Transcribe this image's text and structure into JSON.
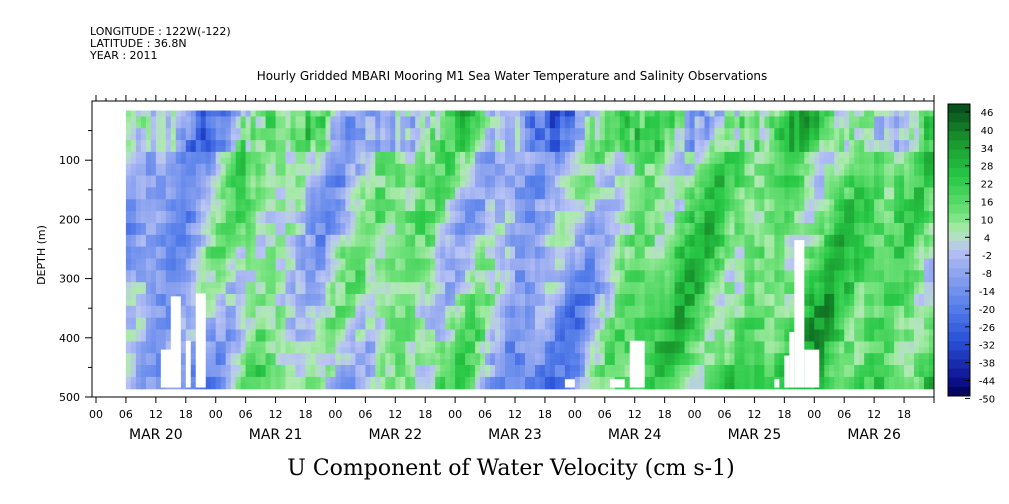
{
  "header": {
    "longitude": "LONGITUDE : 122W(-122)",
    "latitude": "LATITUDE : 36.8N",
    "year": "YEAR : 2011"
  },
  "chart_data": {
    "type": "heatmap",
    "title": "Hourly Gridded MBARI Mooring M1 Sea Water Temperature and Salinity Observations",
    "xlabel": "",
    "ylabel": "DEPTH (m)",
    "variable_label": "U Component of Water Velocity (cm s-1)",
    "x_day_labels": [
      "MAR 20",
      "MAR 21",
      "MAR 22",
      "MAR 23",
      "MAR 24",
      "MAR 25",
      "MAR 26"
    ],
    "x_hour_labels": [
      "00",
      "06",
      "12",
      "18"
    ],
    "y_ticks": [
      100,
      200,
      300,
      400,
      500
    ],
    "ylim": [
      500,
      0
    ],
    "colorbar_labels": [
      46,
      40,
      34,
      28,
      22,
      16,
      10,
      4,
      -2,
      -8,
      -14,
      -20,
      -26,
      -32,
      -38,
      -44,
      -50
    ],
    "colorbar_range": [
      -50,
      46
    ],
    "data_extent": {
      "start_day_hour": [
        20,
        6
      ],
      "end_day_hour": [
        26,
        23
      ],
      "depth_top": 16,
      "depth_bottom": 484
    },
    "value_profile_by_time": [
      {
        "t_hours": 6,
        "value": -8
      },
      {
        "t_hours": 18,
        "value": -16
      },
      {
        "t_hours": 30,
        "value": 12
      },
      {
        "t_hours": 45,
        "value": -6
      },
      {
        "t_hours": 60,
        "value": 10
      },
      {
        "t_hours": 75,
        "value": 4
      },
      {
        "t_hours": 84,
        "value": -14
      },
      {
        "t_hours": 96,
        "value": -10
      },
      {
        "t_hours": 108,
        "value": 14
      },
      {
        "t_hours": 120,
        "value": 18
      },
      {
        "t_hours": 132,
        "value": 12
      },
      {
        "t_hours": 144,
        "value": 20
      },
      {
        "t_hours": 164,
        "value": 14
      }
    ],
    "grid": false,
    "legend": "colorbar-right"
  }
}
